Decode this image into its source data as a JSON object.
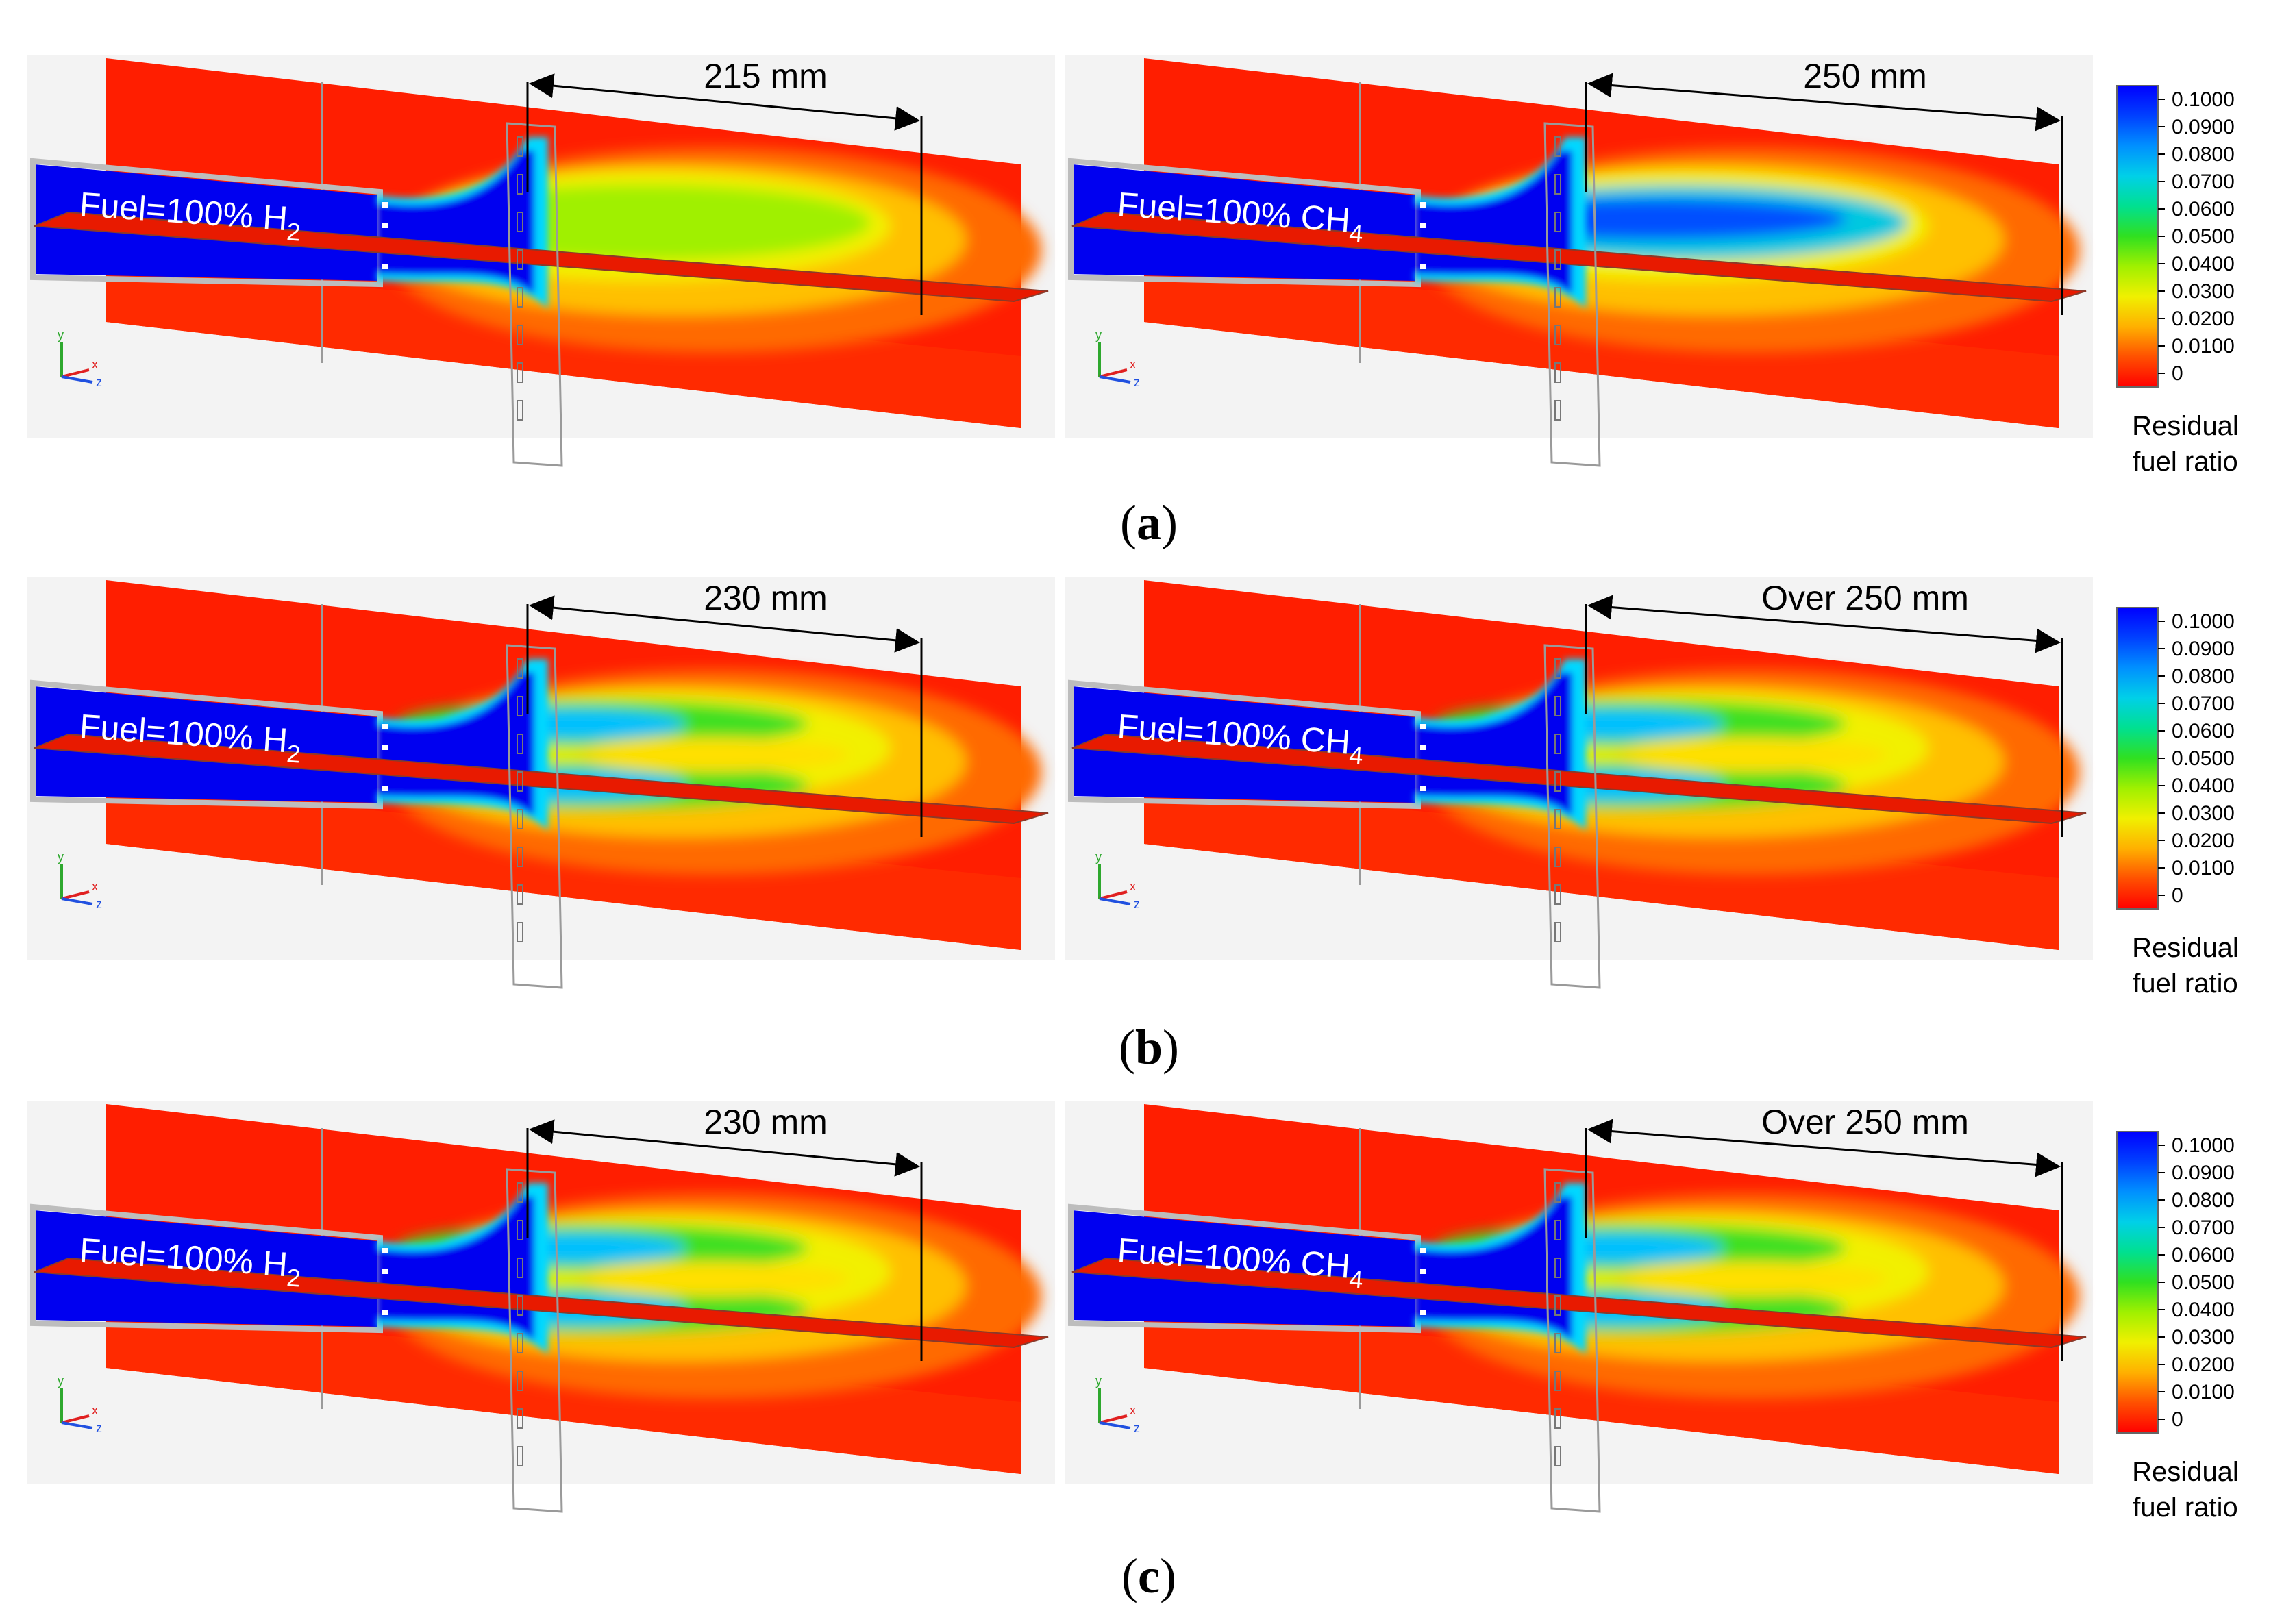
{
  "rows": [
    {
      "caption": "b_a",
      "label": "a",
      "panels": [
        {
          "fuel_text": "Fuel=100% H",
          "subscript": "2",
          "distance_label": "215 mm",
          "fuel": "H2"
        },
        {
          "fuel_text": "Fuel=100% CH",
          "subscript": "4",
          "distance_label": "250 mm",
          "fuel": "CH4"
        }
      ]
    },
    {
      "label": "b",
      "panels": [
        {
          "fuel_text": "Fuel=100% H",
          "subscript": "2",
          "distance_label": "230 mm",
          "fuel": "H2"
        },
        {
          "fuel_text": "Fuel=100% CH",
          "subscript": "4",
          "distance_label": "Over 250 mm",
          "fuel": "CH4"
        }
      ]
    },
    {
      "label": "c",
      "panels": [
        {
          "fuel_text": "Fuel=100% H",
          "subscript": "2",
          "distance_label": "230 mm",
          "fuel": "H2"
        },
        {
          "fuel_text": "Fuel=100% CH",
          "subscript": "4",
          "distance_label": "Over 250 mm",
          "fuel": "CH4"
        }
      ]
    }
  ],
  "colorbar": {
    "ticks": [
      "0.1000",
      "0.0900",
      "0.0800",
      "0.0700",
      "0.0600",
      "0.0500",
      "0.0400",
      "0.0300",
      "0.0200",
      "0.0100",
      "0"
    ],
    "title_line1": "Residual",
    "title_line2": "fuel ratio",
    "colors": [
      "#0000ff",
      "#0030ff",
      "#0070ff",
      "#00b0ff",
      "#00e0e0",
      "#00e080",
      "#40e000",
      "#a0f000",
      "#e0e000",
      "#ffc000",
      "#ff8000",
      "#ff3000",
      "#ff0000"
    ]
  },
  "axis_triad": {
    "x": "x",
    "y": "y",
    "z": "z"
  },
  "palette": {
    "low": "#ff1a00",
    "high": "#0000f0",
    "frame": "#bdbdbd"
  }
}
